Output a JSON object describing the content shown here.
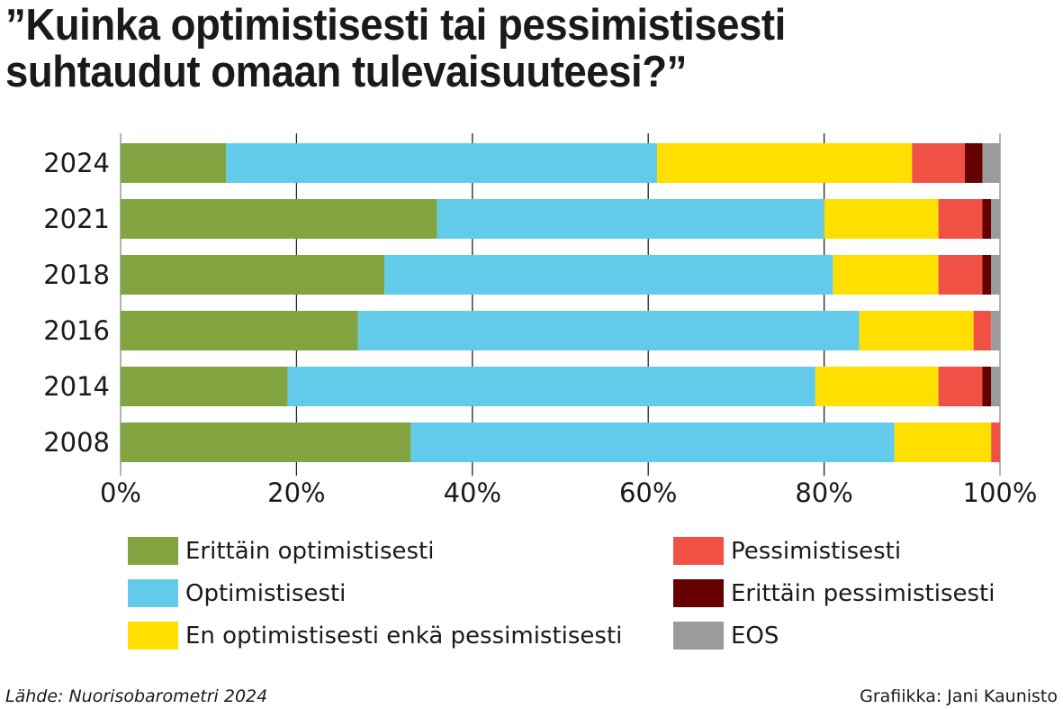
{
  "title": "”Kuinka optimistisesti tai pessimistisesti suhtaudut omaan tulevaisuuteesi?”",
  "title_lines": [
    "”Kuinka optimistisesti tai pessimistisesti",
    "suhtaudut omaan tulevaisuuteesi?”"
  ],
  "chart_data": {
    "type": "bar",
    "orientation": "horizontal",
    "stacked": true,
    "categories": [
      "2024",
      "2021",
      "2018",
      "2016",
      "2014",
      "2008"
    ],
    "series": [
      {
        "name": "Erittäin optimistisesti",
        "color": "#82a440",
        "values": [
          12,
          36,
          30,
          27,
          19,
          33
        ]
      },
      {
        "name": "Optimistisesti",
        "color": "#62cbe9",
        "values": [
          49,
          44,
          51,
          57,
          60,
          55
        ]
      },
      {
        "name": "En optimistisesti enkä pessimistisesti",
        "color": "#fedf00",
        "values": [
          29,
          13,
          12,
          13,
          14,
          11
        ]
      },
      {
        "name": "Pessimistisesti",
        "color": "#f15144",
        "values": [
          6,
          5,
          5,
          2,
          5,
          1
        ]
      },
      {
        "name": "Erittäin pessimistisesti",
        "color": "#660000",
        "values": [
          2,
          1,
          1,
          0,
          1,
          0
        ]
      },
      {
        "name": "EOS",
        "color": "#9b9b9b",
        "values": [
          2,
          1,
          1,
          1,
          1,
          0
        ]
      }
    ],
    "xlim": [
      0,
      100
    ],
    "xticks": [
      "0%",
      "20%",
      "40%",
      "60%",
      "80%",
      "100%"
    ],
    "grid": true,
    "legend_placement": "bottom"
  },
  "footer": {
    "source": "Lähde: Nuorisobarometri 2024",
    "credit": "Grafiikka: Jani Kaunisto"
  }
}
